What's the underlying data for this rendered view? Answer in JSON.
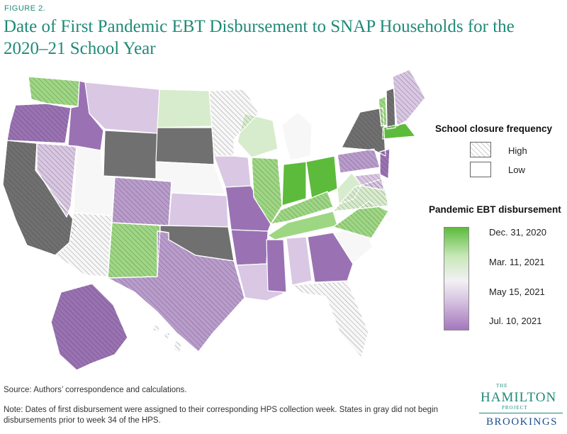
{
  "figure_label": "FIGURE 2.",
  "title": "Date of First Pandemic EBT Disbursement to SNAP Households for the 2020–21 School Year",
  "legend": {
    "closure_heading": "School closure frequency",
    "closure_items": [
      "High",
      "Low"
    ],
    "ebt_heading": "Pandemic EBT disbursement",
    "ebt_ticks": [
      "Dec. 31, 2020",
      "Mar. 11, 2021",
      "May 15, 2021",
      "Jul. 10, 2021"
    ]
  },
  "colors": {
    "gray": "#707070",
    "dark_green": "#5dbb3c",
    "mid_green": "#9ed783",
    "light_green": "#d7eccc",
    "white": "#f7f7f7",
    "light_purple": "#d9c7e3",
    "mid_purple": "#b99ccc",
    "dark_purple": "#9a72b3"
  },
  "states": [
    {
      "name": "WA",
      "fill": "mid_green",
      "hatch": true
    },
    {
      "name": "OR",
      "fill": "dark_purple",
      "hatch": true
    },
    {
      "name": "CA",
      "fill": "gray",
      "hatch": true
    },
    {
      "name": "NV",
      "fill": "light_purple",
      "hatch": true
    },
    {
      "name": "ID",
      "fill": "dark_purple",
      "hatch": false
    },
    {
      "name": "MT",
      "fill": "light_purple",
      "hatch": false
    },
    {
      "name": "WY",
      "fill": "gray",
      "hatch": false
    },
    {
      "name": "UT",
      "fill": "white",
      "hatch": false
    },
    {
      "name": "AZ",
      "fill": "white",
      "hatch": true
    },
    {
      "name": "CO",
      "fill": "mid_purple",
      "hatch": true
    },
    {
      "name": "NM",
      "fill": "mid_green",
      "hatch": true
    },
    {
      "name": "ND",
      "fill": "light_green",
      "hatch": false
    },
    {
      "name": "SD",
      "fill": "gray",
      "hatch": false
    },
    {
      "name": "NE",
      "fill": "white",
      "hatch": false
    },
    {
      "name": "KS",
      "fill": "light_purple",
      "hatch": false
    },
    {
      "name": "OK",
      "fill": "gray",
      "hatch": false
    },
    {
      "name": "TX",
      "fill": "mid_purple",
      "hatch": true
    },
    {
      "name": "MN",
      "fill": "white",
      "hatch": true
    },
    {
      "name": "IA",
      "fill": "light_purple",
      "hatch": false
    },
    {
      "name": "MO",
      "fill": "dark_purple",
      "hatch": false
    },
    {
      "name": "AR",
      "fill": "dark_purple",
      "hatch": false
    },
    {
      "name": "LA",
      "fill": "light_purple",
      "hatch": false
    },
    {
      "name": "WI",
      "fill": "light_green",
      "hatch": false
    },
    {
      "name": "IL",
      "fill": "mid_green",
      "hatch": true
    },
    {
      "name": "MI",
      "fill": "white",
      "hatch": false
    },
    {
      "name": "IN",
      "fill": "dark_green",
      "hatch": false
    },
    {
      "name": "OH",
      "fill": "dark_green",
      "hatch": false
    },
    {
      "name": "KY",
      "fill": "mid_green",
      "hatch": true
    },
    {
      "name": "TN",
      "fill": "mid_green",
      "hatch": false
    },
    {
      "name": "MS",
      "fill": "dark_purple",
      "hatch": false
    },
    {
      "name": "AL",
      "fill": "light_purple",
      "hatch": false
    },
    {
      "name": "GA",
      "fill": "dark_purple",
      "hatch": false
    },
    {
      "name": "FL",
      "fill": "white",
      "hatch": true
    },
    {
      "name": "SC",
      "fill": "white",
      "hatch": false
    },
    {
      "name": "NC",
      "fill": "mid_green",
      "hatch": true
    },
    {
      "name": "VA",
      "fill": "light_green",
      "hatch": true
    },
    {
      "name": "WV",
      "fill": "light_green",
      "hatch": false
    },
    {
      "name": "PA",
      "fill": "mid_purple",
      "hatch": true
    },
    {
      "name": "NY",
      "fill": "gray",
      "hatch": true
    },
    {
      "name": "VT",
      "fill": "mid_green",
      "hatch": true
    },
    {
      "name": "NH",
      "fill": "gray",
      "hatch": true
    },
    {
      "name": "ME",
      "fill": "light_purple",
      "hatch": true
    },
    {
      "name": "MA",
      "fill": "dark_green",
      "hatch": false
    },
    {
      "name": "NJ",
      "fill": "dark_purple",
      "hatch": true
    },
    {
      "name": "MD",
      "fill": "light_purple",
      "hatch": true
    },
    {
      "name": "AK",
      "fill": "dark_purple",
      "hatch": true
    },
    {
      "name": "HI",
      "fill": "white",
      "hatch": true
    }
  ],
  "source": "Source: Authors’ correspondence and calculations.",
  "note": "Note: Dates of first disbursement were assigned to their corresponding HPS collection week. States in gray did not begin disbursements prior to week 34 of the HPS.",
  "brand": {
    "the": "THE",
    "hamilton": "HAMILTON",
    "project": "PROJECT",
    "brookings": "BROOKINGS"
  }
}
